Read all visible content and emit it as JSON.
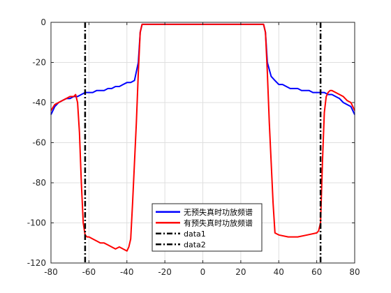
{
  "chart_data": {
    "type": "line",
    "title": "",
    "xlabel": "",
    "ylabel": "",
    "xlim": [
      -80,
      80
    ],
    "ylim": [
      -120,
      0
    ],
    "xticks": [
      -80,
      -60,
      -40,
      -20,
      0,
      20,
      40,
      60,
      80
    ],
    "yticks": [
      0,
      -20,
      -40,
      -60,
      -80,
      -100,
      -120
    ],
    "xtick_labels": [
      "-80",
      "-60",
      "-40",
      "-20",
      "0",
      "20",
      "40",
      "60",
      "80"
    ],
    "ytick_labels": [
      "0",
      "-20",
      "-40",
      "-60",
      "-80",
      "-100",
      "-120"
    ],
    "grid": true,
    "legend_position": "bottom-center",
    "series": [
      {
        "name": "无预失真时功放频谱",
        "color": "#0000FF",
        "style": "solid",
        "x": [
          -80,
          -78,
          -76,
          -74,
          -72,
          -70,
          -68,
          -66,
          -64,
          -62,
          -60,
          -58,
          -56,
          -54,
          -52,
          -50,
          -48,
          -46,
          -44,
          -42,
          -40,
          -38,
          -36,
          -34,
          -33,
          -32,
          -30,
          -25,
          -20,
          -15,
          -10,
          -5,
          0,
          5,
          10,
          15,
          20,
          25,
          30,
          32,
          33,
          34,
          36,
          38,
          40,
          42,
          44,
          46,
          48,
          50,
          52,
          54,
          56,
          58,
          60,
          62,
          64,
          66,
          68,
          70,
          72,
          74,
          76,
          78,
          80
        ],
        "y": [
          -46,
          -42,
          -40,
          -39,
          -38,
          -38,
          -37,
          -37,
          -36,
          -35,
          -35,
          -35,
          -34,
          -34,
          -34,
          -33,
          -33,
          -32,
          -32,
          -31,
          -30,
          -30,
          -29,
          -20,
          -5,
          -1,
          -1,
          -1,
          -1,
          -1,
          -1,
          -1,
          -1,
          -1,
          -1,
          -1,
          -1,
          -1,
          -1,
          -1,
          -5,
          -20,
          -27,
          -29,
          -31,
          -31,
          -32,
          -33,
          -33,
          -33,
          -34,
          -34,
          -34,
          -35,
          -35,
          -35,
          -35,
          -36,
          -36,
          -37,
          -38,
          -40,
          -41,
          -42,
          -46
        ]
      },
      {
        "name": "有预失真时功放频谱",
        "color": "#FF0000",
        "style": "solid",
        "x": [
          -80,
          -78,
          -76,
          -74,
          -72,
          -70,
          -68,
          -67,
          -66,
          -65,
          -64,
          -63,
          -62,
          -61,
          -60,
          -58,
          -56,
          -54,
          -52,
          -50,
          -48,
          -46,
          -44,
          -42,
          -40,
          -39,
          -38,
          -37,
          -36,
          -35,
          -34,
          -33,
          -32,
          -30,
          -25,
          -20,
          -15,
          -10,
          -5,
          0,
          5,
          10,
          15,
          20,
          25,
          30,
          32,
          33,
          34,
          35,
          36,
          37,
          38,
          40,
          45,
          50,
          55,
          60,
          61,
          62,
          63,
          64,
          65,
          66,
          67,
          68,
          70,
          72,
          74,
          76,
          78,
          80
        ],
        "y": [
          -44,
          -41,
          -40,
          -39,
          -38,
          -37,
          -37,
          -36,
          -40,
          -55,
          -80,
          -100,
          -106,
          -107,
          -107,
          -108,
          -109,
          -110,
          -110,
          -111,
          -112,
          -113,
          -112,
          -113,
          -114,
          -112,
          -108,
          -90,
          -70,
          -50,
          -25,
          -5,
          -1,
          -1,
          -1,
          -1,
          -1,
          -1,
          -1,
          -1,
          -1,
          -1,
          -1,
          -1,
          -1,
          -1,
          -1,
          -5,
          -25,
          -50,
          -70,
          -90,
          -105,
          -106,
          -107,
          -107,
          -106,
          -105,
          -104,
          -100,
          -70,
          -45,
          -37,
          -35,
          -34,
          -34,
          -35,
          -36,
          -37,
          -39,
          -40,
          -44
        ]
      },
      {
        "name": "data1",
        "color": "#000000",
        "style": "dash-dot",
        "x": [
          -62,
          -62
        ],
        "y": [
          0,
          -120
        ]
      },
      {
        "name": "data2",
        "color": "#000000",
        "style": "dash-dot",
        "x": [
          62,
          62
        ],
        "y": [
          0,
          -120
        ]
      }
    ]
  }
}
